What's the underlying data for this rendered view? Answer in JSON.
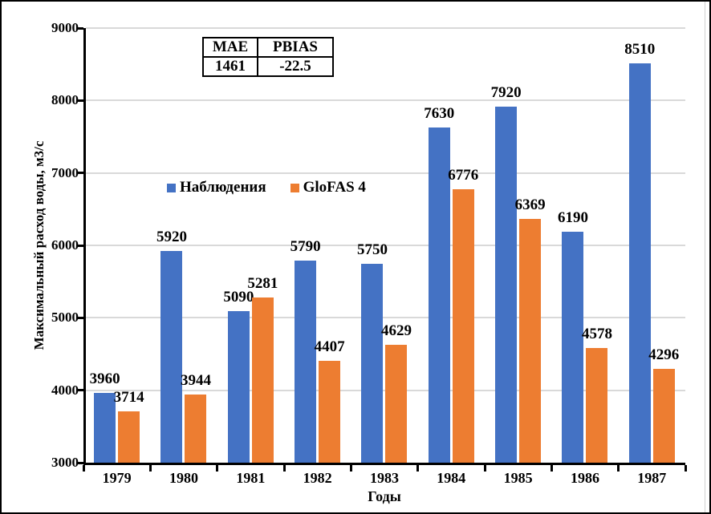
{
  "chart_data": {
    "type": "bar",
    "categories": [
      "1979",
      "1980",
      "1981",
      "1982",
      "1983",
      "1984",
      "1985",
      "1986",
      "1987"
    ],
    "series": [
      {
        "name": "Наблюдения",
        "color": "#4472C4",
        "values": [
          3960,
          5920,
          5090,
          5790,
          5750,
          7630,
          7920,
          6190,
          8510
        ]
      },
      {
        "name": "GloFAS 4",
        "color": "#ED7D31",
        "values": [
          3714,
          3944,
          5281,
          4407,
          4629,
          6776,
          6369,
          4578,
          4296
        ]
      }
    ],
    "title": "",
    "xlabel": "Годы",
    "ylabel": "Максимальный расход воды, м3/с",
    "ylim": [
      3000,
      9000
    ],
    "ytick_step": 1000,
    "grid": true,
    "data_labels": true,
    "legend_position": "inside-left-middle"
  },
  "stats_table": {
    "headers": [
      "MAE",
      "PBIAS"
    ],
    "values": [
      "1461",
      "-22.5"
    ]
  },
  "colors": {
    "series_blue": "#4472C4",
    "series_orange": "#ED7D31",
    "gridline": "#D9D9D9",
    "axis": "#000000",
    "text": "#000000",
    "background": "#FFFFFF"
  }
}
